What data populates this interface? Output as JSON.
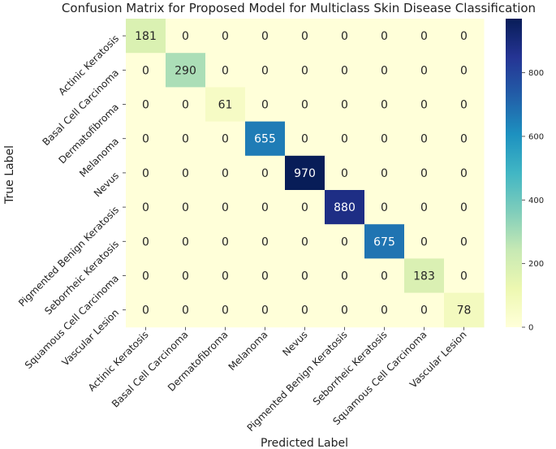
{
  "chart_data": {
    "type": "heatmap",
    "title": "Confusion Matrix for Proposed Model for Multiclass Skin Disease Classification",
    "xlabel": "Predicted Label",
    "ylabel": "True Label",
    "row_labels": [
      "Actinic Keratosis",
      "Basal Cell Carcinoma",
      "Dermatofibroma",
      "Melanoma",
      "Nevus",
      "Pigmented Benign Keratosis",
      "Seborrheic Keratosis",
      "Squamous Cell Carcinoma",
      "Vascular Lesion"
    ],
    "col_labels": [
      "Actinic Keratosis",
      "Basal Cell Carcinoma",
      "Dermatofibroma",
      "Melanoma",
      "Nevus",
      "Pigmented Benign Keratosis",
      "Seborrheic Keratosis",
      "Squamous Cell Carcinoma",
      "Vascular Lesion"
    ],
    "values": [
      [
        181,
        0,
        0,
        0,
        0,
        0,
        0,
        0,
        0
      ],
      [
        0,
        290,
        0,
        0,
        0,
        0,
        0,
        0,
        0
      ],
      [
        0,
        0,
        61,
        0,
        0,
        0,
        0,
        0,
        0
      ],
      [
        0,
        0,
        0,
        655,
        0,
        0,
        0,
        0,
        0
      ],
      [
        0,
        0,
        0,
        0,
        970,
        0,
        0,
        0,
        0
      ],
      [
        0,
        0,
        0,
        0,
        0,
        880,
        0,
        0,
        0
      ],
      [
        0,
        0,
        0,
        0,
        0,
        0,
        675,
        0,
        0
      ],
      [
        0,
        0,
        0,
        0,
        0,
        0,
        0,
        183,
        0
      ],
      [
        0,
        0,
        0,
        0,
        0,
        0,
        0,
        0,
        78
      ]
    ],
    "colormap": "YlGnBu",
    "vmin": 0,
    "vmax": 970,
    "colorbar_ticks": [
      0,
      200,
      400,
      600,
      800
    ]
  }
}
